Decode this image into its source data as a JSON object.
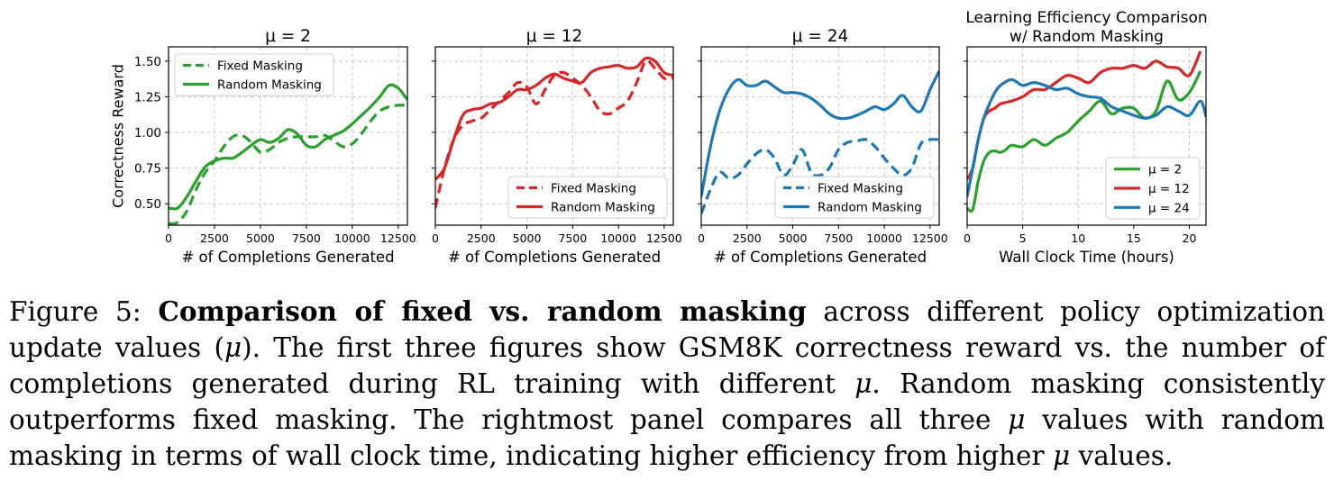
{
  "chart_data": [
    {
      "type": "line",
      "title": "μ = 2",
      "xlabel": "# of Completions Generated",
      "ylabel": "Correctness Reward",
      "xlim": [
        0,
        13000
      ],
      "ylim": [
        0.35,
        1.6
      ],
      "xticks": [
        0,
        2500,
        5000,
        7500,
        10000,
        12500
      ],
      "yticks": [
        0.5,
        0.75,
        1.0,
        1.25,
        1.5
      ],
      "ytick_labels": [
        "0.50",
        "0.75",
        "1.00",
        "1.25",
        "1.50"
      ],
      "grid": true,
      "legend": "upper left",
      "series": [
        {
          "name": "Fixed Masking",
          "color": "#2ca02c",
          "style": "dashed",
          "x": [
            0,
            500,
            1000,
            1500,
            2000,
            2500,
            3000,
            3500,
            4000,
            4500,
            5000,
            5500,
            6000,
            6500,
            7000,
            7500,
            8000,
            8500,
            9000,
            9500,
            10000,
            10500,
            11000,
            11500,
            12000,
            12500,
            13000
          ],
          "y": [
            0.36,
            0.37,
            0.45,
            0.6,
            0.72,
            0.8,
            0.9,
            0.97,
            0.98,
            0.93,
            0.86,
            0.88,
            0.93,
            0.96,
            0.97,
            0.97,
            0.97,
            0.98,
            0.94,
            0.9,
            0.92,
            0.99,
            1.08,
            1.15,
            1.18,
            1.19,
            1.19
          ]
        },
        {
          "name": "Random Masking",
          "color": "#2ca02c",
          "style": "solid",
          "x": [
            0,
            500,
            1000,
            1500,
            2000,
            2500,
            3000,
            3500,
            4000,
            4500,
            5000,
            5500,
            6000,
            6500,
            7000,
            7500,
            8000,
            8500,
            9000,
            9500,
            10000,
            10500,
            11000,
            11500,
            12000,
            12500,
            13000
          ],
          "y": [
            0.47,
            0.47,
            0.55,
            0.66,
            0.76,
            0.8,
            0.82,
            0.82,
            0.86,
            0.91,
            0.95,
            0.93,
            0.96,
            1.02,
            0.99,
            0.91,
            0.9,
            0.95,
            0.98,
            1.01,
            1.06,
            1.12,
            1.18,
            1.25,
            1.33,
            1.31,
            1.23
          ]
        }
      ]
    },
    {
      "type": "line",
      "title": "μ = 12",
      "xlabel": "# of Completions Generated",
      "ylabel": "",
      "xlim": [
        0,
        13000
      ],
      "ylim": [
        0.35,
        1.6
      ],
      "xticks": [
        0,
        2500,
        5000,
        7500,
        10000,
        12500
      ],
      "grid": true,
      "legend": "lower right",
      "series": [
        {
          "name": "Fixed Masking",
          "color": "#d62728",
          "style": "dashed",
          "x": [
            0,
            500,
            1000,
            1500,
            2000,
            2500,
            3000,
            3500,
            4000,
            4500,
            5000,
            5500,
            6000,
            6500,
            7000,
            7500,
            8000,
            8500,
            9000,
            9500,
            10000,
            10500,
            11000,
            11500,
            12000,
            12500,
            13000
          ],
          "y": [
            0.47,
            0.75,
            0.95,
            1.05,
            1.08,
            1.1,
            1.16,
            1.22,
            1.28,
            1.35,
            1.32,
            1.2,
            1.3,
            1.4,
            1.42,
            1.38,
            1.33,
            1.25,
            1.15,
            1.13,
            1.17,
            1.22,
            1.35,
            1.5,
            1.45,
            1.38,
            1.38
          ]
        },
        {
          "name": "Random Masking",
          "color": "#d62728",
          "style": "solid",
          "x": [
            0,
            500,
            1000,
            1500,
            2000,
            2500,
            3000,
            3500,
            4000,
            4500,
            5000,
            5500,
            6000,
            6500,
            7000,
            7500,
            8000,
            8500,
            9000,
            9500,
            10000,
            10500,
            11000,
            11500,
            12000,
            12500,
            13000
          ],
          "y": [
            0.67,
            0.75,
            0.95,
            1.12,
            1.16,
            1.17,
            1.2,
            1.21,
            1.25,
            1.3,
            1.3,
            1.33,
            1.38,
            1.41,
            1.38,
            1.36,
            1.35,
            1.42,
            1.45,
            1.46,
            1.47,
            1.45,
            1.46,
            1.52,
            1.5,
            1.42,
            1.4
          ]
        }
      ]
    },
    {
      "type": "line",
      "title": "μ = 24",
      "xlabel": "# of Completions Generated",
      "ylabel": "",
      "xlim": [
        0,
        13000
      ],
      "ylim": [
        0.35,
        1.6
      ],
      "xticks": [
        0,
        2500,
        5000,
        7500,
        10000,
        12500
      ],
      "grid": true,
      "legend": "lower right",
      "series": [
        {
          "name": "Fixed Masking",
          "color": "#1f77b4",
          "style": "dashed",
          "x": [
            0,
            500,
            1000,
            1500,
            2000,
            2500,
            3000,
            3500,
            4000,
            4500,
            5000,
            5500,
            6000,
            6500,
            7000,
            7500,
            8000,
            8500,
            9000,
            9500,
            10000,
            10500,
            11000,
            11500,
            12000,
            12500,
            13000
          ],
          "y": [
            0.43,
            0.6,
            0.72,
            0.68,
            0.7,
            0.78,
            0.85,
            0.88,
            0.82,
            0.7,
            0.77,
            0.88,
            0.72,
            0.7,
            0.75,
            0.88,
            0.93,
            0.94,
            0.95,
            0.9,
            0.82,
            0.75,
            0.7,
            0.75,
            0.92,
            0.95,
            0.95
          ]
        },
        {
          "name": "Random Masking",
          "color": "#1f77b4",
          "style": "solid",
          "x": [
            0,
            500,
            1000,
            1500,
            2000,
            2500,
            3000,
            3500,
            4000,
            4500,
            5000,
            5500,
            6000,
            6500,
            7000,
            7500,
            8000,
            8500,
            9000,
            9500,
            10000,
            10500,
            11000,
            11500,
            12000,
            12500,
            13000
          ],
          "y": [
            0.55,
            0.9,
            1.15,
            1.3,
            1.37,
            1.33,
            1.33,
            1.36,
            1.32,
            1.28,
            1.28,
            1.27,
            1.24,
            1.19,
            1.13,
            1.1,
            1.1,
            1.12,
            1.15,
            1.18,
            1.16,
            1.2,
            1.26,
            1.18,
            1.15,
            1.3,
            1.43
          ]
        }
      ]
    },
    {
      "type": "line",
      "title": "Learning Efficiency Comparison\nw/ Random Masking",
      "xlabel": "Wall Clock Time (hours)",
      "ylabel": "",
      "xlim": [
        0,
        21.5
      ],
      "ylim": [
        0.35,
        1.6
      ],
      "xticks": [
        0,
        5,
        10,
        15,
        20
      ],
      "grid": true,
      "legend": "lower right",
      "series": [
        {
          "name": "μ = 2",
          "color": "#2ca02c",
          "style": "solid",
          "x": [
            0,
            0.5,
            1,
            1.5,
            2,
            2.5,
            3,
            3.5,
            4,
            5,
            6,
            7,
            8,
            9,
            10,
            11,
            12,
            13,
            14,
            15,
            16,
            17,
            18,
            19,
            20,
            21
          ],
          "y": [
            0.47,
            0.46,
            0.66,
            0.8,
            0.86,
            0.87,
            0.86,
            0.88,
            0.91,
            0.9,
            0.95,
            0.91,
            0.96,
            1.0,
            1.08,
            1.15,
            1.22,
            1.13,
            1.17,
            1.17,
            1.1,
            1.15,
            1.36,
            1.23,
            1.28,
            1.43
          ]
        },
        {
          "name": "μ = 12",
          "color": "#d62728",
          "style": "solid",
          "x": [
            0,
            0.5,
            1,
            1.5,
            2,
            2.5,
            3,
            4,
            5,
            6,
            7,
            8,
            9,
            10,
            11,
            12,
            13,
            14,
            15,
            16,
            17,
            18,
            19,
            20,
            21
          ],
          "y": [
            0.67,
            0.75,
            0.95,
            1.1,
            1.15,
            1.17,
            1.2,
            1.22,
            1.25,
            1.3,
            1.3,
            1.35,
            1.4,
            1.38,
            1.35,
            1.42,
            1.45,
            1.45,
            1.47,
            1.45,
            1.5,
            1.46,
            1.45,
            1.4,
            1.57
          ]
        },
        {
          "name": "μ = 24",
          "color": "#1f77b4",
          "style": "solid",
          "x": [
            0,
            0.5,
            1,
            1.5,
            2,
            2.5,
            3,
            4,
            5,
            6,
            7,
            8,
            9,
            10,
            11,
            12,
            13,
            14,
            15,
            16,
            17,
            18,
            19,
            20,
            21,
            21.5
          ],
          "y": [
            0.55,
            0.75,
            0.95,
            1.1,
            1.2,
            1.28,
            1.33,
            1.37,
            1.33,
            1.35,
            1.33,
            1.3,
            1.31,
            1.27,
            1.25,
            1.24,
            1.18,
            1.15,
            1.12,
            1.1,
            1.12,
            1.18,
            1.15,
            1.12,
            1.22,
            1.11
          ]
        }
      ]
    }
  ],
  "caption": {
    "label": "Figure 5:",
    "bold": "Comparison of fixed vs. random masking",
    "p1": " across different policy optimization update values (",
    "mu": "μ",
    "p2": "). The first three figures show GSM8K correctness reward vs. the number of completions generated during RL training with different ",
    "p3": ".  Random masking consistently outperforms fixed masking. The rightmost panel compares all three ",
    "p4": " values with random masking in terms of wall clock time, indicating higher efficiency from higher ",
    "p5": " values."
  }
}
